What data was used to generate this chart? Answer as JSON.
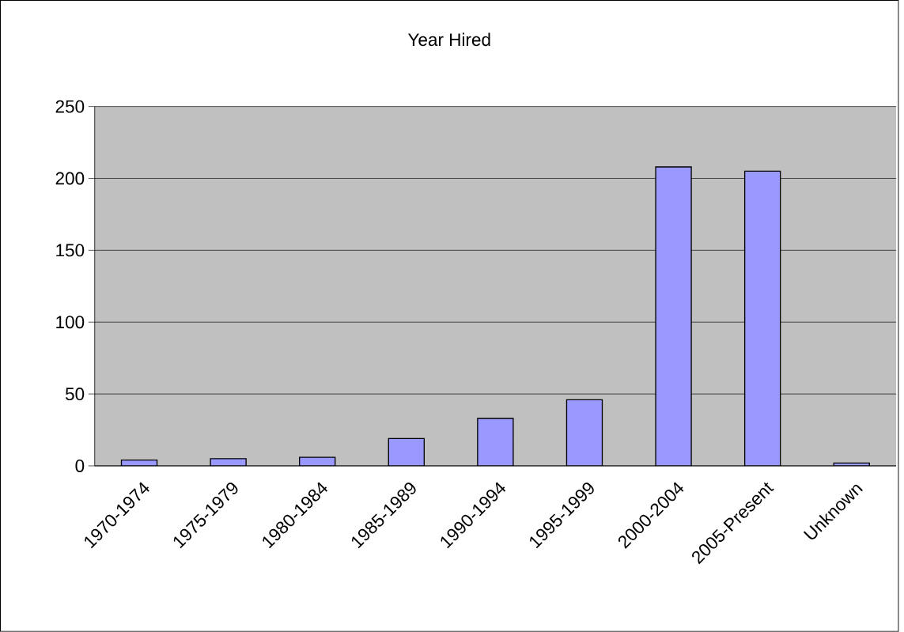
{
  "chart_data": {
    "type": "bar",
    "title": "Year Hired",
    "categories": [
      "1970-1974",
      "1975-1979",
      "1980-1984",
      "1985-1989",
      "1990-1994",
      "1995-1999",
      "2000-2004",
      "2005-Present",
      "Unknown"
    ],
    "values": [
      4,
      5,
      6,
      19,
      33,
      46,
      208,
      205,
      2
    ],
    "color": "#9999ff",
    "ylim": [
      0,
      250
    ],
    "yticks": [
      0,
      50,
      100,
      150,
      200,
      250
    ],
    "grid": "y"
  }
}
